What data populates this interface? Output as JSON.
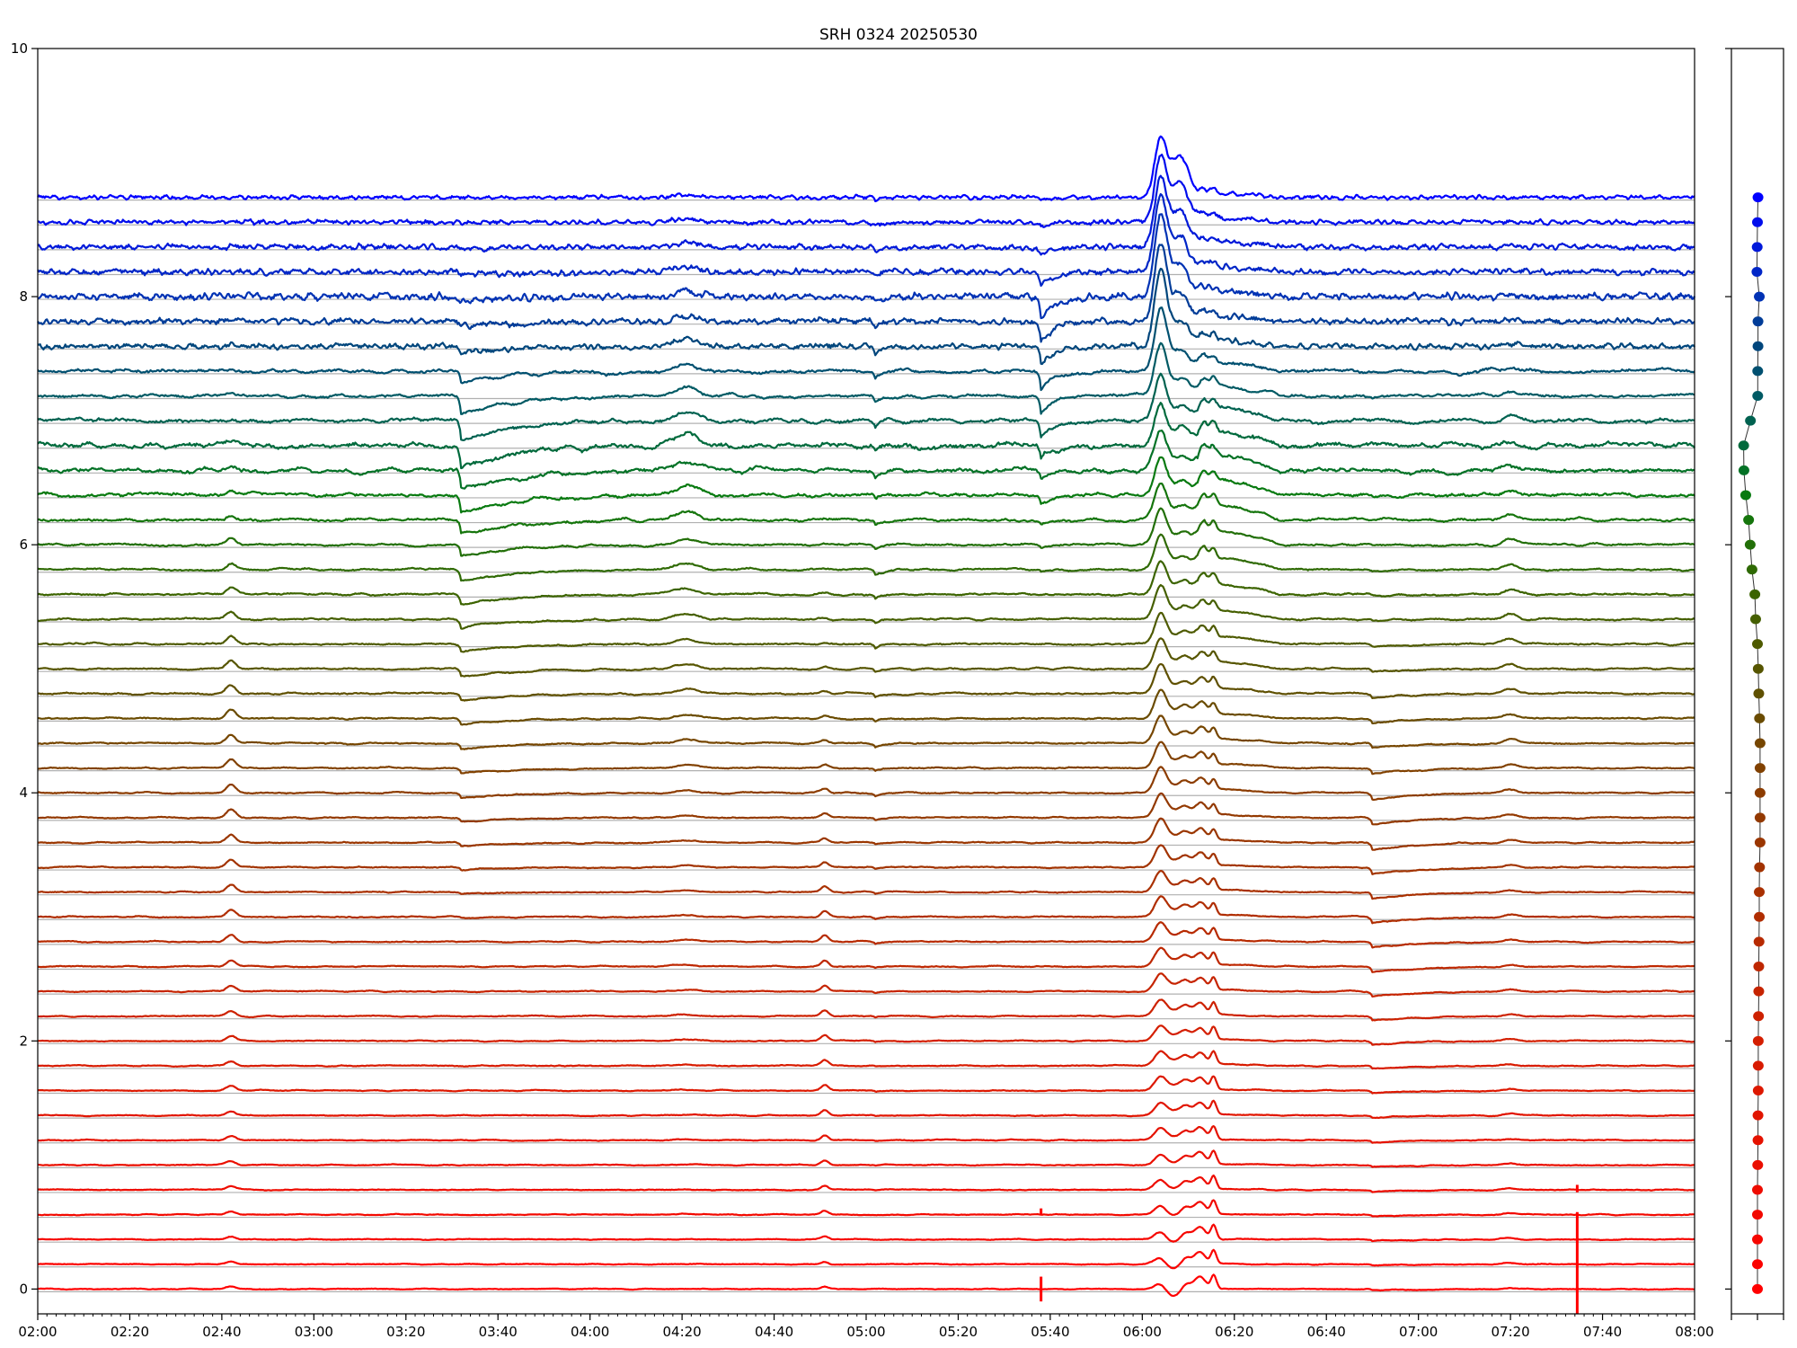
{
  "chart_data": {
    "type": "line",
    "title": "SRH 0324 20250530",
    "xlabel": "",
    "ylabel": "",
    "xlim": [
      "02:00",
      "08:00"
    ],
    "ylim": [
      -0.2,
      10
    ],
    "x_ticks": [
      "02:00",
      "02:20",
      "02:40",
      "03:00",
      "03:20",
      "03:40",
      "04:00",
      "04:20",
      "04:40",
      "05:00",
      "05:20",
      "05:40",
      "06:00",
      "06:20",
      "06:40",
      "07:00",
      "07:20",
      "07:40",
      "08:00"
    ],
    "x_minor_tick_step_minutes": 2,
    "y_ticks": [
      "0",
      "2",
      "4",
      "6",
      "8",
      "10"
    ],
    "grid": "horizontal lines at each trace baseline",
    "legend": "none",
    "series_offsets": [
      0,
      0.2,
      0.4,
      0.6,
      0.8,
      1.0,
      1.2,
      1.4,
      1.6,
      1.8,
      2.0,
      2.2,
      2.4,
      2.6,
      2.8,
      3.0,
      3.2,
      3.4,
      3.6,
      3.8,
      4.0,
      4.2,
      4.4,
      4.6,
      4.8,
      5.0,
      5.2,
      5.4,
      5.6,
      5.8,
      6.0,
      6.2,
      6.4,
      6.6,
      6.8,
      7.0,
      7.2,
      7.4,
      7.6,
      7.8,
      8.0,
      8.2,
      8.4,
      8.6,
      8.8
    ],
    "color_anchors": [
      [
        0,
        "#ff0000"
      ],
      [
        10,
        "#d41e00"
      ],
      [
        20,
        "#8c3c00"
      ],
      [
        24,
        "#5f5000"
      ],
      [
        28,
        "#3c6400"
      ],
      [
        32,
        "#087a10"
      ],
      [
        34,
        "#006a3c"
      ],
      [
        36,
        "#005a64"
      ],
      [
        38,
        "#00467c"
      ],
      [
        40,
        "#0032b4"
      ],
      [
        44,
        "#0000ff"
      ]
    ],
    "noise_profile": [
      [
        0,
        0.004
      ],
      [
        20,
        0.006
      ],
      [
        30,
        0.01
      ],
      [
        34,
        0.025
      ],
      [
        36,
        0.015
      ],
      [
        38,
        0.02
      ],
      [
        40,
        0.025
      ],
      [
        44,
        0.015
      ]
    ],
    "events": [
      {
        "kind": "peak",
        "time": "06:04",
        "width_min": 1.3,
        "amplitude": [
          [
            0,
            0.06
          ],
          [
            10,
            0.12
          ],
          [
            20,
            0.2
          ],
          [
            30,
            0.28
          ],
          [
            34,
            0.32
          ],
          [
            36,
            0.4
          ],
          [
            38,
            0.6
          ],
          [
            40,
            0.65
          ],
          [
            42,
            0.55
          ],
          [
            44,
            0.47
          ]
        ]
      },
      {
        "kind": "peak",
        "time": "06:08",
        "width_min": 1.8,
        "amplitude": [
          [
            0,
            0.04
          ],
          [
            20,
            0.06
          ],
          [
            30,
            0.08
          ],
          [
            36,
            0.12
          ],
          [
            40,
            0.25
          ],
          [
            44,
            0.32
          ]
        ]
      },
      {
        "kind": "peak",
        "time": "06:09.5",
        "width_min": 1.0,
        "amplitude": [
          [
            0,
            0.05
          ],
          [
            30,
            0.05
          ],
          [
            44,
            0.03
          ]
        ]
      },
      {
        "kind": "peak",
        "time": "06:12.5",
        "width_min": 1.2,
        "amplitude": [
          [
            0,
            0.1
          ],
          [
            10,
            0.1
          ],
          [
            20,
            0.11
          ],
          [
            30,
            0.12
          ],
          [
            36,
            0.08
          ],
          [
            44,
            0.04
          ]
        ]
      },
      {
        "kind": "peak",
        "time": "06:15.5",
        "width_min": 0.6,
        "amplitude": [
          [
            0,
            0.11
          ],
          [
            10,
            0.1
          ],
          [
            20,
            0.08
          ],
          [
            30,
            0.08
          ],
          [
            38,
            0.05
          ],
          [
            44,
            0.03
          ]
        ]
      },
      {
        "kind": "peak",
        "time": "06:07",
        "width_min": 2.0,
        "amplitude": [
          [
            0,
            -0.09
          ],
          [
            2,
            -0.06
          ],
          [
            4,
            -0.03
          ],
          [
            8,
            0
          ],
          [
            44,
            0
          ]
        ]
      },
      {
        "kind": "plateau",
        "time": "06:12",
        "end": "06:30",
        "amplitude": [
          [
            0,
            0
          ],
          [
            18,
            0.02
          ],
          [
            26,
            0.06
          ],
          [
            30,
            0.12
          ],
          [
            34,
            0.14
          ],
          [
            36,
            0.1
          ],
          [
            38,
            0.05
          ],
          [
            44,
            0.04
          ]
        ]
      },
      {
        "kind": "dip",
        "time": "03:32",
        "width_min": 12,
        "amplitude": [
          [
            0,
            0
          ],
          [
            14,
            0
          ],
          [
            20,
            -0.04
          ],
          [
            26,
            -0.06
          ],
          [
            30,
            -0.1
          ],
          [
            34,
            -0.18
          ],
          [
            36,
            -0.15
          ],
          [
            38,
            -0.05
          ],
          [
            40,
            -0.03
          ],
          [
            44,
            0
          ]
        ]
      },
      {
        "kind": "dip",
        "time": "05:38",
        "width_min": 3,
        "amplitude": [
          [
            0,
            0
          ],
          [
            28,
            0
          ],
          [
            32,
            -0.06
          ],
          [
            36,
            -0.15
          ],
          [
            40,
            -0.18
          ],
          [
            42,
            -0.05
          ],
          [
            44,
            -0.02
          ]
        ]
      },
      {
        "kind": "peak",
        "time": "02:42",
        "width_min": 1.0,
        "amplitude": [
          [
            0,
            0.02
          ],
          [
            10,
            0.04
          ],
          [
            16,
            0.06
          ],
          [
            24,
            0.07
          ],
          [
            30,
            0.05
          ],
          [
            34,
            0.02
          ],
          [
            44,
            0
          ]
        ]
      },
      {
        "kind": "peak",
        "time": "04:51",
        "width_min": 0.8,
        "amplitude": [
          [
            0,
            0.02
          ],
          [
            6,
            0.04
          ],
          [
            14,
            0.05
          ],
          [
            20,
            0.03
          ],
          [
            26,
            0.01
          ],
          [
            44,
            0
          ]
        ]
      },
      {
        "kind": "peak",
        "time": "04:21",
        "width_min": 2.5,
        "amplitude": [
          [
            0,
            0
          ],
          [
            20,
            0.02
          ],
          [
            28,
            0.05
          ],
          [
            34,
            0.08
          ],
          [
            38,
            0.06
          ],
          [
            44,
            0.02
          ]
        ]
      },
      {
        "kind": "dip",
        "time": "05:02",
        "width_min": 1.5,
        "amplitude": [
          [
            0,
            0
          ],
          [
            20,
            -0.02
          ],
          [
            30,
            -0.04
          ],
          [
            38,
            -0.06
          ],
          [
            44,
            -0.02
          ]
        ]
      },
      {
        "kind": "dip",
        "time": "06:50",
        "width_min": 10,
        "amplitude": [
          [
            0,
            -0.01
          ],
          [
            8,
            -0.02
          ],
          [
            14,
            -0.05
          ],
          [
            18,
            -0.06
          ],
          [
            22,
            -0.04
          ],
          [
            28,
            -0.01
          ],
          [
            44,
            0
          ]
        ]
      },
      {
        "kind": "peak",
        "time": "07:20",
        "width_min": 1.5,
        "amplitude": [
          [
            0,
            0.01
          ],
          [
            16,
            0.02
          ],
          [
            24,
            0.04
          ],
          [
            30,
            0.05
          ],
          [
            34,
            0.03
          ],
          [
            44,
            0
          ]
        ]
      }
    ],
    "spikes": [
      {
        "time": "07:34.5",
        "y_range": [
          -0.2,
          0.62
        ]
      },
      {
        "time": "07:34.5",
        "y_range": [
          0.78,
          0.84
        ]
      },
      {
        "time": "05:38",
        "y_range": [
          -0.1,
          0.1
        ]
      },
      {
        "time": "05:38",
        "y_range": [
          0.6,
          0.65
        ]
      }
    ],
    "side_panel": {
      "xlim": [
        -1,
        1
      ],
      "x_ticks": 3,
      "dot_x": [
        0,
        0,
        0,
        0,
        0,
        0.01,
        0.02,
        0.02,
        0.03,
        0.03,
        0.03,
        0.04,
        0.05,
        0.05,
        0.06,
        0.07,
        0.07,
        0.08,
        0.1,
        0.1,
        0.1,
        0.1,
        0.1,
        0.08,
        0.05,
        0.03,
        0,
        -0.07,
        -0.1,
        -0.21,
        -0.28,
        -0.34,
        -0.45,
        -0.52,
        -0.53,
        -0.27,
        0.01,
        0.01,
        0.02,
        0.02,
        0.07,
        -0.02,
        -0.01,
        0,
        0.02
      ]
    }
  }
}
